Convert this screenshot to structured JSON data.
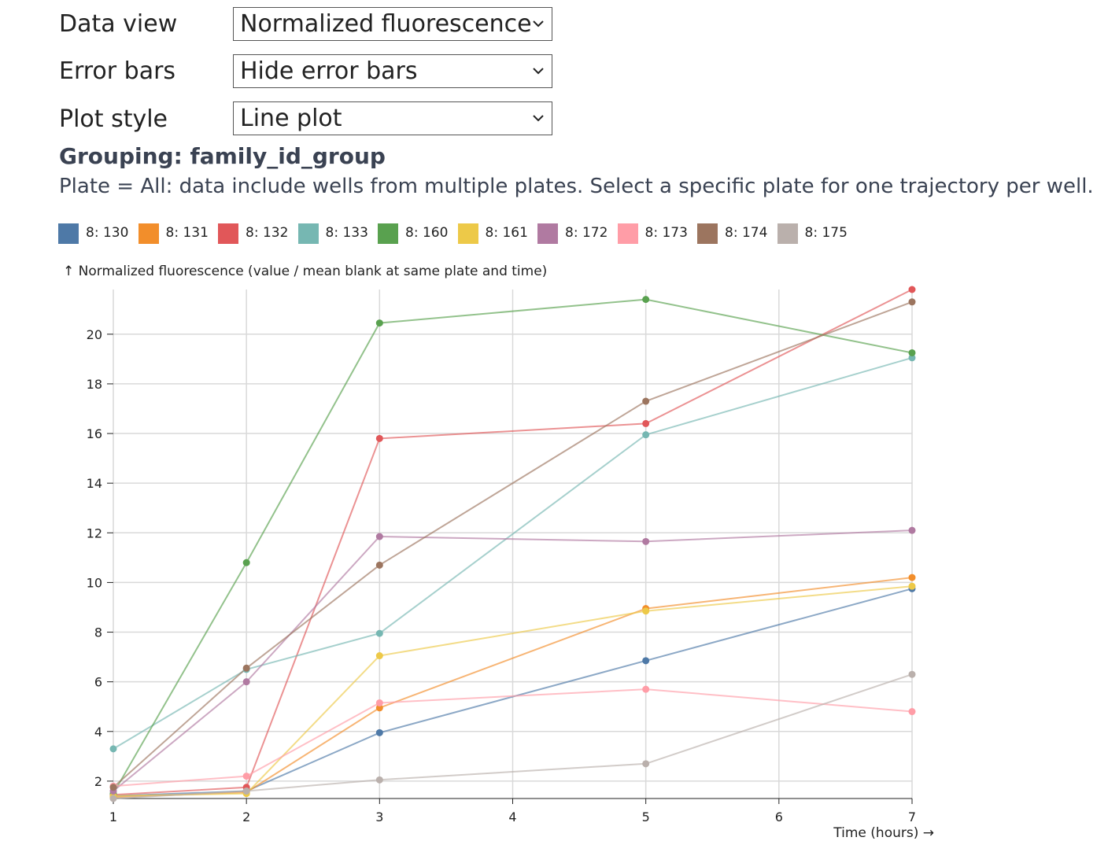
{
  "controls": [
    {
      "label": "Data view",
      "selected": "Normalized fluorescence"
    },
    {
      "label": "Error bars",
      "selected": "Hide error bars"
    },
    {
      "label": "Plot style",
      "selected": "Line plot"
    }
  ],
  "grouping_text": "Grouping: family_id_group",
  "plate_note": "Plate = All: data include wells from multiple plates. Select a specific plate for one trajectory per well.",
  "chart_data": {
    "type": "line",
    "ylabel": "↑ Normalized fluorescence (value / mean blank at same plate and time)",
    "xlabel": "Time (hours) →",
    "x": [
      1,
      2,
      3,
      5,
      7
    ],
    "xticks": [
      1,
      2,
      3,
      4,
      5,
      6,
      7
    ],
    "yticks": [
      2,
      4,
      6,
      8,
      10,
      12,
      14,
      16,
      18,
      20
    ],
    "xlim": [
      1,
      7
    ],
    "ylim": [
      1.3,
      21.8
    ],
    "grid": true,
    "legend_position": "top",
    "series": [
      {
        "name": "8: 130",
        "color": "#4e79a7",
        "values": [
          1.4,
          1.6,
          3.95,
          6.85,
          9.75
        ]
      },
      {
        "name": "8: 131",
        "color": "#f28e2b",
        "values": [
          1.35,
          1.55,
          4.95,
          8.95,
          10.2
        ]
      },
      {
        "name": "8: 132",
        "color": "#e15759",
        "values": [
          1.45,
          1.75,
          15.8,
          16.4,
          21.8
        ]
      },
      {
        "name": "8: 133",
        "color": "#76b7b2",
        "values": [
          3.3,
          6.5,
          7.95,
          15.95,
          19.05
        ]
      },
      {
        "name": "8: 160",
        "color": "#59a14f",
        "values": [
          1.5,
          10.8,
          20.45,
          21.4,
          19.25
        ]
      },
      {
        "name": "8: 161",
        "color": "#edc948",
        "values": [
          1.4,
          1.5,
          7.05,
          8.85,
          9.85
        ]
      },
      {
        "name": "8: 172",
        "color": "#b07aa1",
        "values": [
          1.6,
          6.0,
          11.85,
          11.65,
          12.1
        ]
      },
      {
        "name": "8: 173",
        "color": "#ff9da7",
        "values": [
          1.8,
          2.2,
          5.15,
          5.7,
          4.8
        ]
      },
      {
        "name": "8: 174",
        "color": "#9c755f",
        "values": [
          1.75,
          6.55,
          10.7,
          17.3,
          21.3
        ]
      },
      {
        "name": "8: 175",
        "color": "#bab0ac",
        "values": [
          1.3,
          1.6,
          2.05,
          2.7,
          6.3
        ]
      }
    ]
  }
}
